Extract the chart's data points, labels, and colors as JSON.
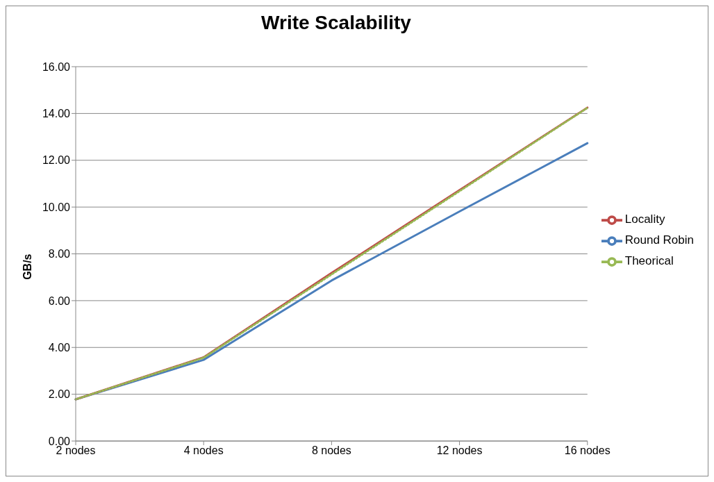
{
  "chart_data": {
    "type": "line",
    "title": "Write Scalability",
    "ylabel": "GB/s",
    "categories": [
      "2 nodes",
      "4 nodes",
      "8 nodes",
      "12 nodes",
      "16 nodes"
    ],
    "series": [
      {
        "name": "Round Robin",
        "color": "#4a7ebb",
        "values": [
          1.78,
          3.47,
          6.86,
          9.81,
          12.73
        ]
      },
      {
        "name": "Locality",
        "color": "#be4b48",
        "values": [
          1.78,
          3.58,
          7.18,
          10.72,
          14.25
        ]
      },
      {
        "name": "Theorical",
        "color": "#98b954",
        "values": [
          1.78,
          3.56,
          7.12,
          10.68,
          14.24
        ],
        "line_style": "dotted"
      }
    ],
    "ylim": [
      0,
      16
    ],
    "yticks": [
      {
        "value": 0,
        "label": "0.00"
      },
      {
        "value": 2,
        "label": "2.00"
      },
      {
        "value": 4,
        "label": "4.00"
      },
      {
        "value": 6,
        "label": "6.00"
      },
      {
        "value": 8,
        "label": "8.00"
      },
      {
        "value": 10,
        "label": "10.00"
      },
      {
        "value": 12,
        "label": "12.00"
      },
      {
        "value": 14,
        "label": "14.00"
      },
      {
        "value": 16,
        "label": "16.00"
      }
    ],
    "grid": "y",
    "legend": "right",
    "marker": "none"
  }
}
